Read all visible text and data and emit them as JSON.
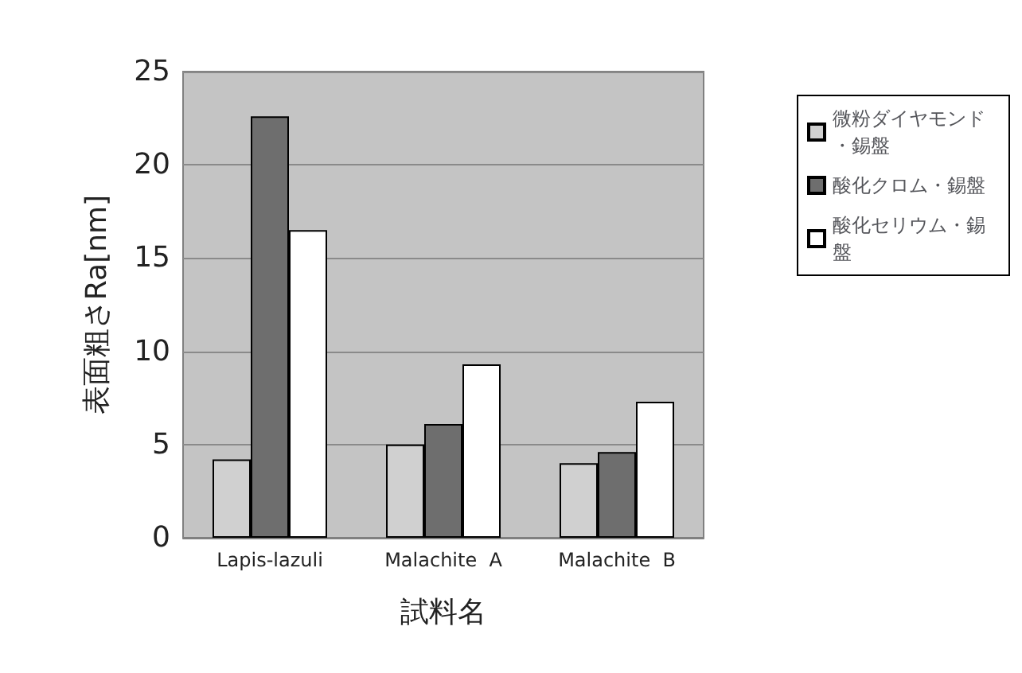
{
  "chart_data": {
    "type": "bar",
    "ylabel": "表面粗さRa[nm]",
    "xlabel": "試料名",
    "categories": [
      "Lapis-lazuli",
      "Malachite  A",
      "Malachite  B"
    ],
    "series": [
      {
        "name": "微粉ダイヤモンド・錫盤",
        "color": "#d0d0d0",
        "values": [
          4.2,
          5.0,
          4.0
        ]
      },
      {
        "name": "酸化クロム・錫盤",
        "color": "#6e6e6e",
        "values": [
          22.6,
          6.1,
          4.6
        ]
      },
      {
        "name": "酸化セリウム・錫盤",
        "color": "#ffffff",
        "values": [
          16.5,
          9.3,
          7.3
        ]
      }
    ],
    "ylim": [
      0,
      25
    ],
    "yticks": [
      0,
      5,
      10,
      15,
      20,
      25
    ],
    "grid": "y",
    "legend": "right"
  }
}
